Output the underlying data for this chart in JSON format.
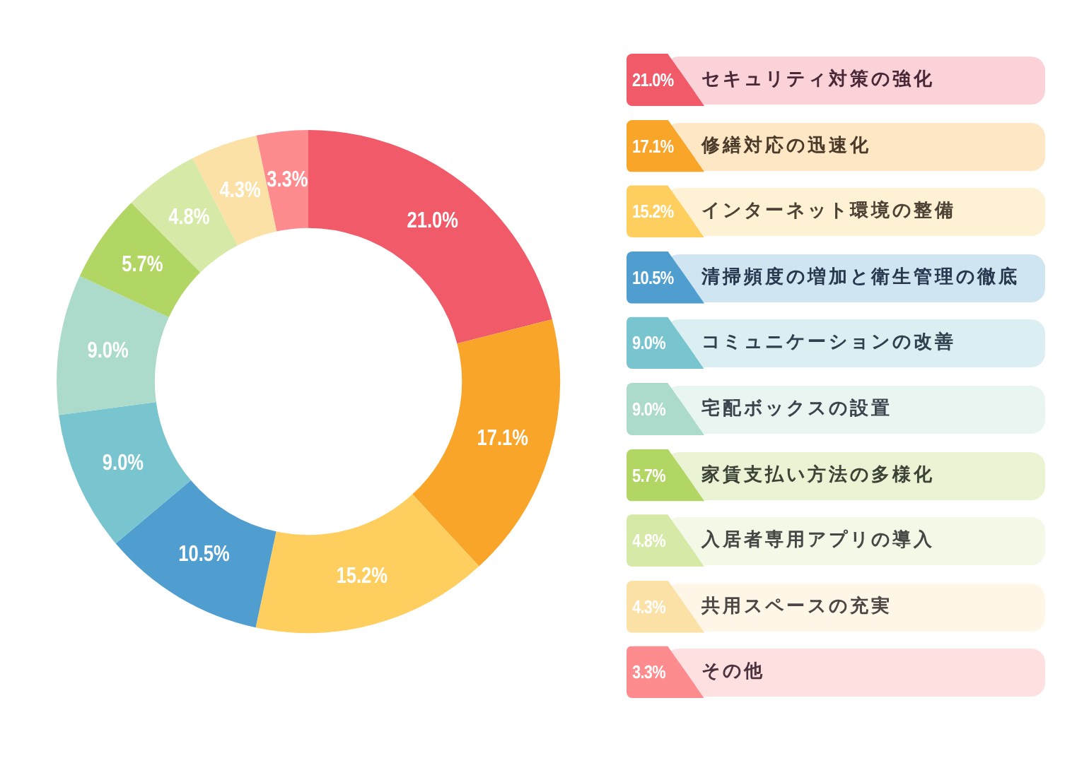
{
  "chart_data": {
    "type": "donut",
    "categories": [
      "セキュリティ対策の強化",
      "修繕対応の迅速化",
      "インターネット環境の整備",
      "清掃頻度の増加と衛生管理の徹底",
      "コミュニケーションの改善",
      "宅配ボックスの設置",
      "家賃支払い方法の多様化",
      "入居者専用アプリの導入",
      "共用スペースの充実",
      "その他"
    ],
    "values": [
      21.0,
      17.1,
      15.2,
      10.5,
      9.0,
      9.0,
      5.7,
      4.8,
      4.3,
      3.3
    ],
    "value_labels": [
      "21.0%",
      "17.1%",
      "15.2%",
      "10.5%",
      "9.0%",
      "9.0%",
      "5.7%",
      "4.8%",
      "4.3%",
      "3.3%"
    ],
    "colors": [
      "#f05a69",
      "#f8a529",
      "#fecf5e",
      "#4f9ecf",
      "#79c5cf",
      "#acdacb",
      "#b2d663",
      "#d6e9a6",
      "#fbe1a6",
      "#fe8b8e"
    ],
    "legend": "right"
  }
}
